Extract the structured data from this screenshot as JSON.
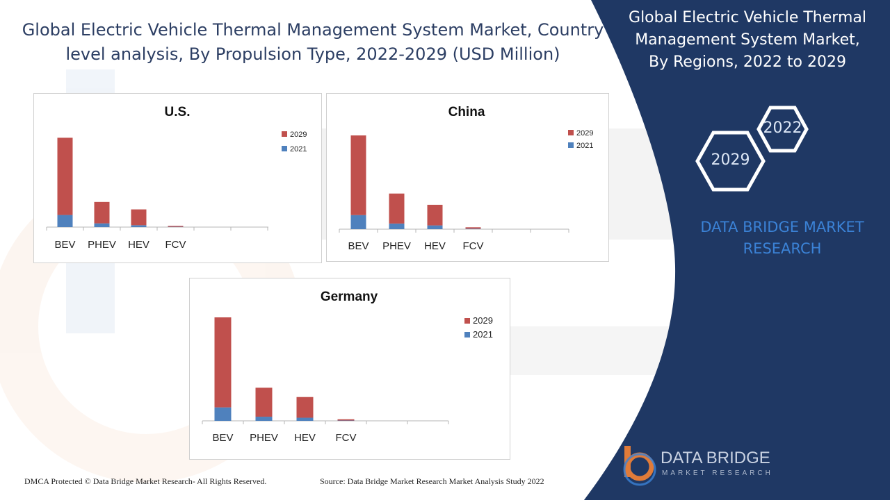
{
  "title": "Global Electric Vehicle Thermal Management System Market, Country level analysis, By Propulsion Type, 2022-2029 (USD Million)",
  "side_panel": {
    "title": "Global Electric Vehicle Thermal Management System Market, By Regions, 2022 to 2029",
    "hex_years": [
      "2022",
      "2029"
    ],
    "brand_text": "DATA BRIDGE MARKET RESEARCH"
  },
  "footer": {
    "copyright": "DMCA Protected © Data Bridge Market Research- All Rights Reserved.",
    "source": "Source: Data Bridge Market Research Market Analysis Study 2022"
  },
  "logo": {
    "name": "DATA BRIDGE",
    "tagline": "MARKET RESEARCH"
  },
  "colors": {
    "series_2029": "#c0504d",
    "series_2021": "#4f81bd",
    "panel_navy": "#1f3864"
  },
  "chart_data": [
    {
      "type": "bar",
      "title": "U.S.",
      "stacked": true,
      "categories": [
        "BEV",
        "PHEV",
        "HEV",
        "FCV"
      ],
      "series": [
        {
          "name": "2029",
          "values": [
            83,
            23,
            17,
            1
          ]
        },
        {
          "name": "2021",
          "values": [
            13,
            4,
            2,
            0.3
          ]
        }
      ],
      "ylim": [
        0,
        100
      ],
      "legend": "right",
      "grid": false
    },
    {
      "type": "bar",
      "title": "China",
      "stacked": true,
      "categories": [
        "BEV",
        "PHEV",
        "HEV",
        "FCV"
      ],
      "series": [
        {
          "name": "2029",
          "values": [
            85,
            32,
            22,
            1.5
          ]
        },
        {
          "name": "2021",
          "values": [
            15,
            6,
            4,
            0.5
          ]
        }
      ],
      "ylim": [
        0,
        100
      ],
      "legend": "right",
      "grid": false
    },
    {
      "type": "bar",
      "title": "Germany",
      "stacked": true,
      "categories": [
        "BEV",
        "PHEV",
        "HEV",
        "FCV"
      ],
      "series": [
        {
          "name": "2029",
          "values": [
            87,
            28,
            20,
            1.2
          ]
        },
        {
          "name": "2021",
          "values": [
            13,
            4,
            3,
            0.3
          ]
        }
      ],
      "ylim": [
        0,
        100
      ],
      "legend": "right",
      "grid": false
    }
  ]
}
